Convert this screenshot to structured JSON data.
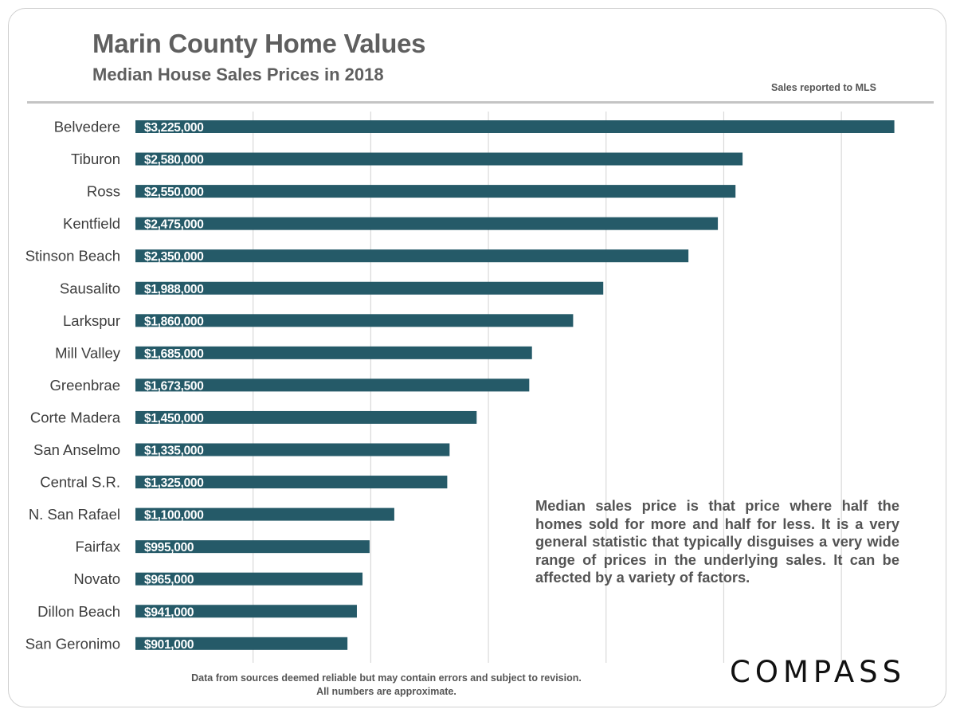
{
  "header": {
    "title": "Marin County Home Values",
    "subtitle": "Median House Sales Prices in 2018",
    "source_note": "Sales reported  to MLS"
  },
  "chart_data": {
    "type": "bar",
    "orientation": "horizontal",
    "title": "Marin County Home Values",
    "subtitle": "Median House Sales Prices in 2018",
    "xlabel": "",
    "ylabel": "",
    "xlim": [
      0,
      3250000
    ],
    "grid": true,
    "categories": [
      "Belvedere",
      "Tiburon",
      "Ross",
      "Kentfield",
      "Stinson Beach",
      "Sausalito",
      "Larkspur",
      "Mill Valley",
      "Greenbrae",
      "Corte Madera",
      "San Anselmo",
      "Central S.R.",
      "N. San Rafael",
      "Fairfax",
      "Novato",
      "Dillon Beach",
      "San Geronimo"
    ],
    "values": [
      3225000,
      2580000,
      2550000,
      2475000,
      2350000,
      1988000,
      1860000,
      1685000,
      1673500,
      1450000,
      1335000,
      1325000,
      1100000,
      995000,
      965000,
      941000,
      901000
    ],
    "labels": [
      "$3,225,000",
      "$2,580,000",
      "$2,550,000",
      "$2,475,000",
      "$2,350,000",
      "$1,988,000",
      "$1,860,000",
      "$1,685,000",
      "$1,673,500",
      "$1,450,000",
      "$1,335,000",
      "$1,325,000",
      "$1,100,000",
      "$995,000",
      "$965,000",
      "$941,000",
      "$901,000"
    ],
    "bar_color": "#255a68",
    "grid_color": "#d9d9d9",
    "label_color": "#ffffff"
  },
  "note": {
    "text": "Median sales price is that price where half the homes sold for more and half for less. It is a very general statistic that typically disguises a very wide range of prices in the underlying sales. It can be affected by a variety of factors."
  },
  "footer": {
    "line1": "Data from sources deemed reliable but  may contain errors and subject to revision.",
    "line2": "All numbers are approximate."
  },
  "brand": {
    "logo_text": "COMPASS"
  }
}
